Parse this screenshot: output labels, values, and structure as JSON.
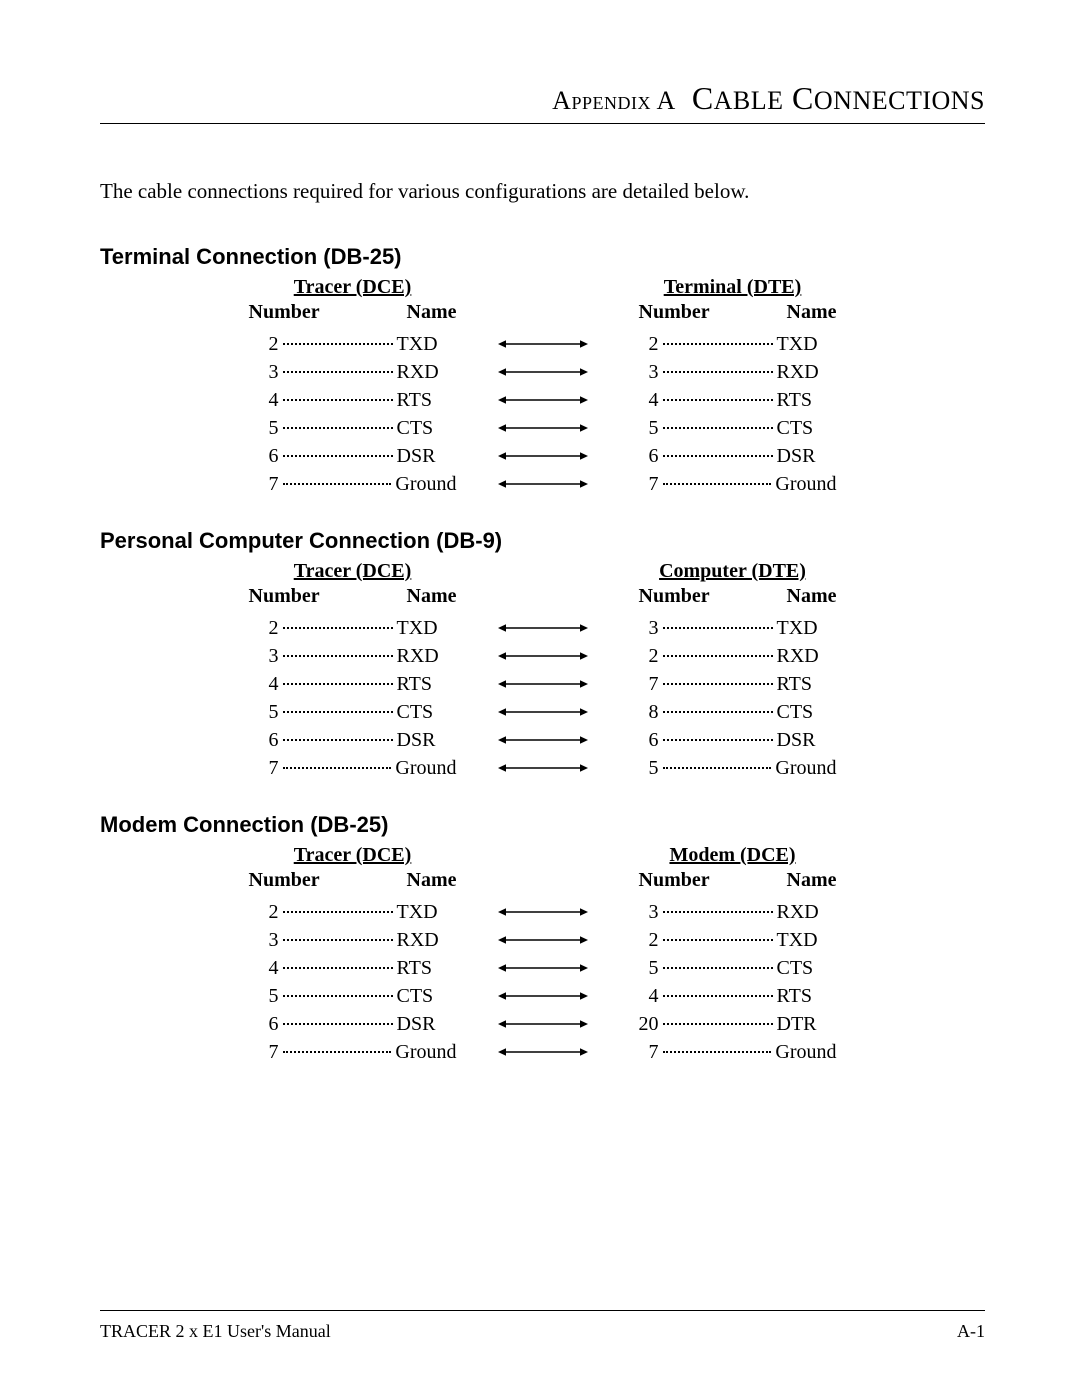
{
  "page": {
    "appendix_label_small": "Appendix A",
    "title_big": "Cable Connections",
    "intro": "The cable connections required for various configurations are detailed below.",
    "footer_left": "TRACER 2 x E1 User's Manual",
    "footer_right": "A-1"
  },
  "tables": {
    "headers": {
      "number": "Number",
      "name": "Name"
    },
    "terminal": {
      "title": "Terminal Connection  (DB-25)",
      "left_title": "Tracer (DCE)",
      "right_title": "Terminal (DTE)",
      "rows": [
        {
          "ln": "2",
          "lname": "TXD",
          "rn": "2",
          "rname": "TXD"
        },
        {
          "ln": "3",
          "lname": "RXD",
          "rn": "3",
          "rname": "RXD"
        },
        {
          "ln": "4",
          "lname": "RTS",
          "rn": "4",
          "rname": "RTS"
        },
        {
          "ln": "5",
          "lname": "CTS",
          "rn": "5",
          "rname": "CTS"
        },
        {
          "ln": "6",
          "lname": "DSR",
          "rn": "6",
          "rname": "DSR"
        },
        {
          "ln": "7",
          "lname": "Ground",
          "rn": "7",
          "rname": "Ground"
        }
      ]
    },
    "pc": {
      "title": "Personal Computer Connection (DB-9)",
      "left_title": "Tracer (DCE)",
      "right_title": "Computer (DTE)",
      "rows": [
        {
          "ln": "2",
          "lname": "TXD",
          "rn": "3",
          "rname": "TXD"
        },
        {
          "ln": "3",
          "lname": "RXD",
          "rn": "2",
          "rname": "RXD"
        },
        {
          "ln": "4",
          "lname": "RTS",
          "rn": "7",
          "rname": "RTS"
        },
        {
          "ln": "5",
          "lname": "CTS",
          "rn": "8",
          "rname": "CTS"
        },
        {
          "ln": "6",
          "lname": "DSR",
          "rn": "6",
          "rname": "DSR"
        },
        {
          "ln": "7",
          "lname": "Ground",
          "rn": "5",
          "rname": "Ground"
        }
      ]
    },
    "modem": {
      "title": "Modem Connection (DB-25)",
      "left_title": "Tracer (DCE)",
      "right_title": "Modem (DCE)",
      "rows": [
        {
          "ln": "2",
          "lname": "TXD",
          "rn": "3",
          "rname": "RXD"
        },
        {
          "ln": "3",
          "lname": "RXD",
          "rn": "2",
          "rname": "TXD"
        },
        {
          "ln": "4",
          "lname": "RTS",
          "rn": "5",
          "rname": "CTS"
        },
        {
          "ln": "5",
          "lname": "CTS",
          "rn": "4",
          "rname": "RTS"
        },
        {
          "ln": "6",
          "lname": "DSR",
          "rn": "20",
          "rname": "DTR"
        },
        {
          "ln": "7",
          "lname": "Ground",
          "rn": "7",
          "rname": "Ground"
        }
      ]
    }
  },
  "style": {
    "accent_color": "#000000",
    "background_color": "#ffffff",
    "body_font_pt": 20,
    "section_title_font_pt": 22,
    "page_title_font_pt": 32,
    "line_color": "#000000",
    "dot_color": "#000000",
    "arrow_line_width": 1.5,
    "arrow_head_size": 6
  }
}
